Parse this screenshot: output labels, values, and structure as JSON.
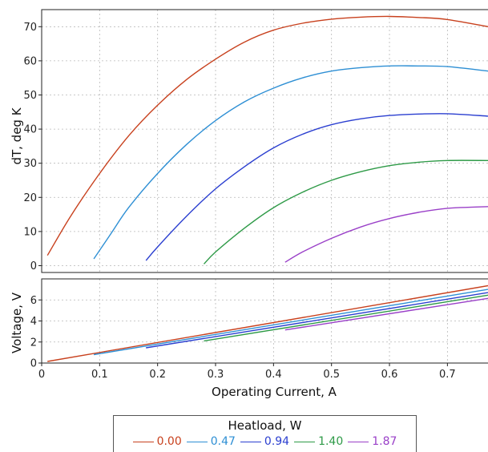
{
  "chart_data": [
    {
      "type": "line",
      "ylabel": "dT, deg K",
      "xlim": [
        0,
        0.77
      ],
      "ylim": [
        -2,
        75
      ],
      "yticks": [
        0,
        10,
        20,
        30,
        40,
        50,
        60,
        70
      ],
      "series": [
        {
          "name": "0.00",
          "color": "#c8411e",
          "x": [
            0.01,
            0.05,
            0.1,
            0.15,
            0.2,
            0.25,
            0.3,
            0.35,
            0.4,
            0.45,
            0.5,
            0.55,
            0.6,
            0.65,
            0.7,
            0.77
          ],
          "y": [
            3,
            14.5,
            27,
            38,
            47,
            54.5,
            60.5,
            65.5,
            69,
            71,
            72.2,
            72.8,
            73,
            72.7,
            72.1,
            70
          ]
        },
        {
          "name": "0.47",
          "color": "#2e8fd4",
          "x": [
            0.09,
            0.12,
            0.15,
            0.2,
            0.25,
            0.3,
            0.35,
            0.4,
            0.45,
            0.5,
            0.55,
            0.6,
            0.65,
            0.7,
            0.77
          ],
          "y": [
            2,
            9.5,
            17,
            27,
            35.5,
            42.5,
            48,
            52,
            55,
            57,
            58,
            58.5,
            58.5,
            58.3,
            57
          ]
        },
        {
          "name": "0.94",
          "color": "#2b3fd0",
          "x": [
            0.18,
            0.2,
            0.25,
            0.3,
            0.35,
            0.4,
            0.45,
            0.5,
            0.55,
            0.6,
            0.65,
            0.7,
            0.77
          ],
          "y": [
            1.5,
            5.5,
            14.5,
            22.5,
            29,
            34.5,
            38.5,
            41.3,
            43,
            44,
            44.4,
            44.5,
            43.8
          ]
        },
        {
          "name": "1.40",
          "color": "#2e9a47",
          "x": [
            0.28,
            0.3,
            0.35,
            0.4,
            0.45,
            0.5,
            0.55,
            0.6,
            0.65,
            0.7,
            0.77
          ],
          "y": [
            0.5,
            4,
            11,
            17,
            21.5,
            25,
            27.5,
            29.3,
            30.3,
            30.8,
            30.8
          ]
        },
        {
          "name": "1.87",
          "color": "#9a40c8",
          "x": [
            0.42,
            0.45,
            0.5,
            0.55,
            0.6,
            0.65,
            0.7,
            0.77
          ],
          "y": [
            1,
            4,
            8,
            11.3,
            13.8,
            15.6,
            16.8,
            17.3
          ]
        }
      ]
    },
    {
      "type": "line",
      "xlabel": "Operating Current, A",
      "ylabel": "Voltage, V",
      "xlim": [
        0,
        0.77
      ],
      "ylim": [
        0,
        8
      ],
      "yticks": [
        0,
        2,
        4,
        6
      ],
      "xticks": [
        0,
        0.1,
        0.2,
        0.3,
        0.4,
        0.5,
        0.6,
        0.7
      ],
      "series": [
        {
          "name": "0.00",
          "color": "#c8411e",
          "x": [
            0.01,
            0.77
          ],
          "y": [
            0.15,
            7.35
          ]
        },
        {
          "name": "0.47",
          "color": "#2e8fd4",
          "x": [
            0.09,
            0.77
          ],
          "y": [
            0.8,
            7.0
          ]
        },
        {
          "name": "0.94",
          "color": "#2b3fd0",
          "x": [
            0.18,
            0.77
          ],
          "y": [
            1.45,
            6.7
          ]
        },
        {
          "name": "1.40",
          "color": "#2e9a47",
          "x": [
            0.28,
            0.77
          ],
          "y": [
            2.1,
            6.45
          ]
        },
        {
          "name": "1.87",
          "color": "#9a40c8",
          "x": [
            0.42,
            0.77
          ],
          "y": [
            3.15,
            6.15
          ]
        }
      ]
    }
  ],
  "legend": {
    "title": "Heatload, W",
    "items": [
      {
        "label": "0.00",
        "color": "#c8411e"
      },
      {
        "label": "0.47",
        "color": "#2e8fd4"
      },
      {
        "label": "0.94",
        "color": "#2b3fd0"
      },
      {
        "label": "1.40",
        "color": "#2e9a47"
      },
      {
        "label": "1.87",
        "color": "#9a40c8"
      }
    ]
  }
}
